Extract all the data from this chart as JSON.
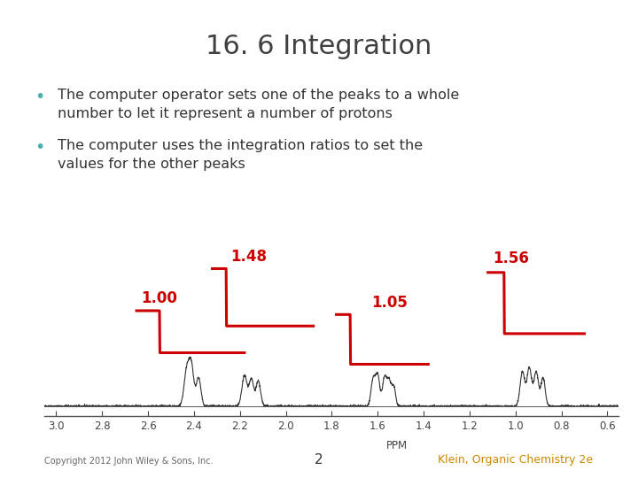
{
  "title": "16. 6 Integration",
  "bullet1": "The computer operator sets one of the peaks to a whole\nnumber to let it represent a number of protons",
  "bullet2": "The computer uses the integration ratios to set the\nvalues for the other peaks",
  "bullet_color": "#4AAFB0",
  "title_color": "#404040",
  "text_color": "#333333",
  "integration_labels": [
    "1.00",
    "1.48",
    "1.05",
    "1.56"
  ],
  "integration_label_color": "#cc0000",
  "copyright_text": "Copyright 2012 John Wiley & Sons, Inc.",
  "page_number": "2",
  "reference_text": "Klein, Organic Chemistry 2e",
  "reference_color": "#cc8800",
  "background_color": "#ffffff",
  "ppm_axis": [
    3.0,
    2.8,
    2.6,
    2.4,
    2.2,
    2.0,
    1.8,
    1.6,
    1.4,
    1.2,
    1.0,
    0.8,
    0.6
  ],
  "ppm_label": "PPM"
}
